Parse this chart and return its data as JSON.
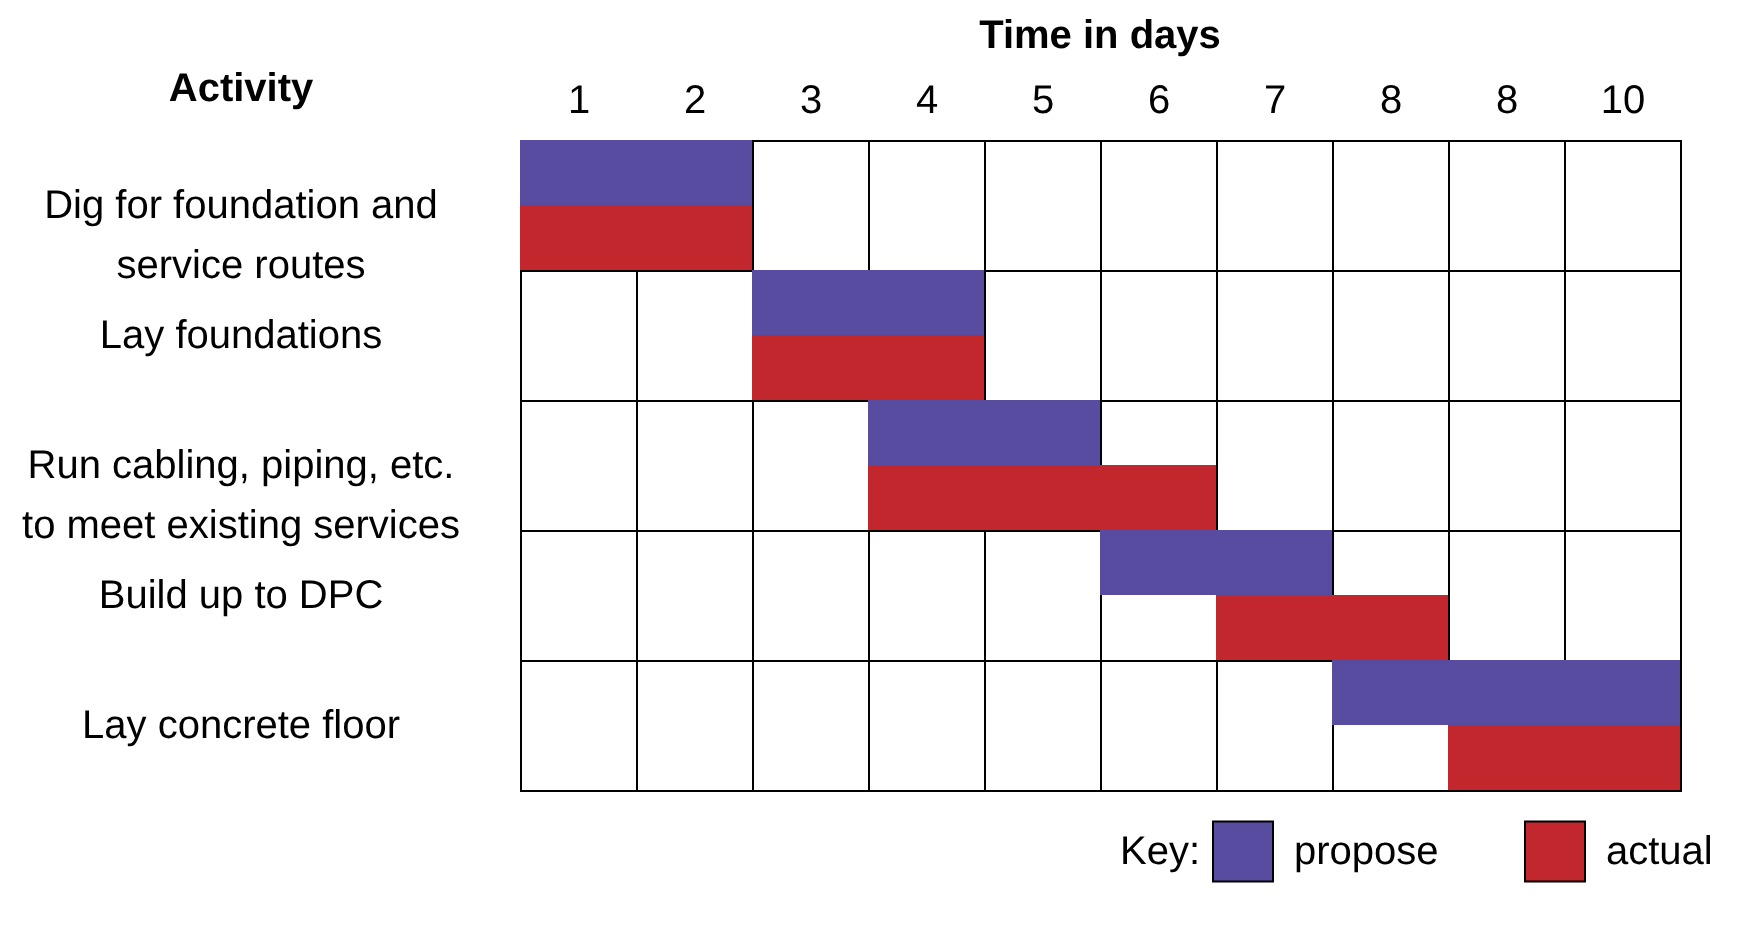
{
  "chart_data": {
    "type": "bar",
    "orientation": "horizontal",
    "title": "Time in days",
    "ylabel": "Activity",
    "legend_title": "Key:",
    "legend": "bottom right",
    "grid": true,
    "categories": [
      "Dig for foundation and service routes",
      "Lay foundations",
      "Run cabling, piping, etc. to meet existing services",
      "Build up to DPC",
      "Lay concrete floor"
    ],
    "series": [
      {
        "name": "propose",
        "color": "#584ca0",
        "base": [
          0,
          2,
          3,
          5,
          7
        ],
        "values": [
          2,
          2,
          2,
          2,
          3
        ]
      },
      {
        "name": "actual",
        "color": "#c1272d",
        "base": [
          0,
          2,
          3,
          6,
          8
        ],
        "values": [
          2,
          2,
          3,
          2,
          2
        ]
      }
    ],
    "xlim": [
      0,
      10
    ],
    "xticks": [
      {
        "value": 0,
        "label": null
      },
      {
        "value": 0.5,
        "label": "1"
      },
      {
        "value": 1,
        "label": null
      },
      {
        "value": 1.5,
        "label": "2"
      },
      {
        "value": 2,
        "label": null
      },
      {
        "value": 2.5,
        "label": "3"
      },
      {
        "value": 3,
        "label": null
      },
      {
        "value": 3.5,
        "label": "4"
      },
      {
        "value": 4,
        "label": null
      },
      {
        "value": 4.5,
        "label": "5"
      },
      {
        "value": 5,
        "label": null
      },
      {
        "value": 5.5,
        "label": "6"
      },
      {
        "value": 6,
        "label": null
      },
      {
        "value": 6.5,
        "label": "7"
      },
      {
        "value": 7,
        "label": null
      },
      {
        "value": 7.5,
        "label": "8"
      },
      {
        "value": 8,
        "label": null
      },
      {
        "value": 8.5,
        "label": "8"
      },
      {
        "value": 9,
        "label": null
      },
      {
        "value": 9.5,
        "label": "10"
      },
      {
        "value": 10,
        "label": null
      }
    ]
  }
}
